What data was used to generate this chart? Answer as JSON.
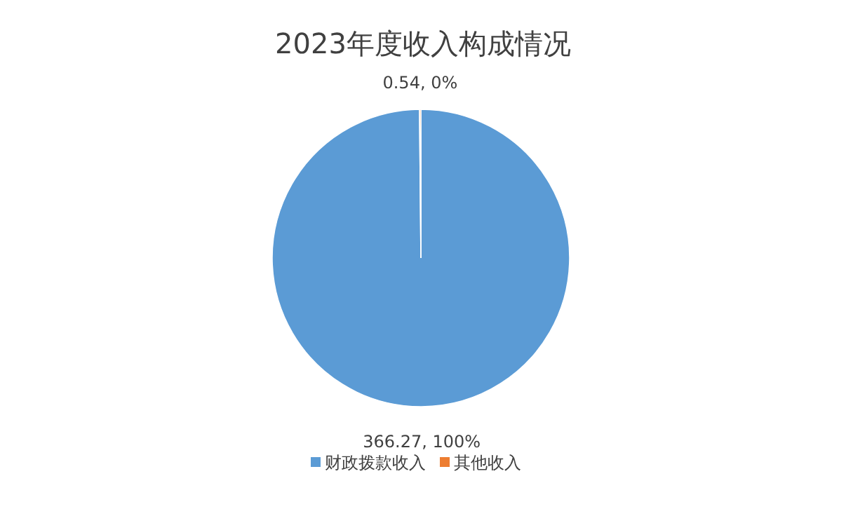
{
  "chart_data": {
    "type": "pie",
    "title": "2023年度收入构成情况",
    "categories": [
      "财政拨款收入",
      "其他收入"
    ],
    "values": [
      366.27,
      0.54
    ],
    "colors": [
      "#5b9bd5",
      "#ed7d31"
    ],
    "value_labels": [
      "366.27, 100%",
      "0.54, 0%"
    ],
    "legend": "bottom"
  }
}
